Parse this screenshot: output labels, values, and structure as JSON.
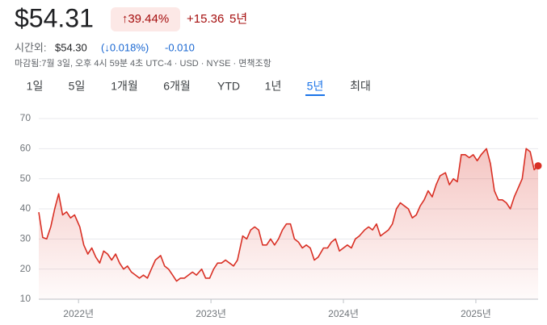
{
  "header": {
    "price": "$54.31",
    "change_pct": "↑39.44%",
    "change_abs": "+15.36",
    "period": "5년"
  },
  "after_hours": {
    "label": "시간외:",
    "price": "$54.30",
    "change_pct": "(↓0.018%)",
    "change_abs": "-0.010"
  },
  "info": "마감됨:7월 3일, 오후 4시 59분 4초 UTC-4 · USD · NYSE · 면책조항",
  "tabs": {
    "items": [
      "1일",
      "5일",
      "1개월",
      "6개월",
      "YTD",
      "1년",
      "5년",
      "최대"
    ],
    "selected": 6
  },
  "chart_data": {
    "type": "line",
    "x": [
      2021.7,
      2021.73,
      2021.76,
      2021.79,
      2021.82,
      2021.85,
      2021.88,
      2021.91,
      2021.94,
      2021.97,
      2022.01,
      2022.04,
      2022.07,
      2022.1,
      2022.13,
      2022.16,
      2022.19,
      2022.22,
      2022.25,
      2022.28,
      2022.31,
      2022.34,
      2022.37,
      2022.4,
      2022.43,
      2022.46,
      2022.49,
      2022.52,
      2022.55,
      2022.58,
      2022.62,
      2022.65,
      2022.68,
      2022.71,
      2022.74,
      2022.77,
      2022.8,
      2022.83,
      2022.86,
      2022.89,
      2022.93,
      2022.96,
      2022.99,
      2023.02,
      2023.05,
      2023.08,
      2023.11,
      2023.14,
      2023.17,
      2023.2,
      2023.24,
      2023.27,
      2023.3,
      2023.33,
      2023.36,
      2023.39,
      2023.42,
      2023.45,
      2023.48,
      2023.51,
      2023.54,
      2023.57,
      2023.6,
      2023.63,
      2023.66,
      2023.69,
      2023.72,
      2023.75,
      2023.78,
      2023.81,
      2023.85,
      2023.88,
      2023.91,
      2023.94,
      2023.97,
      2024.0,
      2024.03,
      2024.06,
      2024.09,
      2024.12,
      2024.16,
      2024.19,
      2024.22,
      2024.25,
      2024.28,
      2024.31,
      2024.34,
      2024.37,
      2024.4,
      2024.43,
      2024.46,
      2024.49,
      2024.52,
      2024.55,
      2024.58,
      2024.61,
      2024.64,
      2024.67,
      2024.7,
      2024.73,
      2024.77,
      2024.8,
      2024.83,
      2024.86,
      2024.89,
      2024.92,
      2024.95,
      2024.98,
      2025.01,
      2025.04,
      2025.08,
      2025.11,
      2025.14,
      2025.17,
      2025.2,
      2025.23,
      2025.26,
      2025.29,
      2025.32,
      2025.35,
      2025.38,
      2025.41,
      2025.44,
      2025.47
    ],
    "series": [
      {
        "color": "#d93025",
        "values": [
          38.9,
          30.5,
          30,
          34,
          40,
          45,
          38,
          39,
          37,
          38,
          34,
          28,
          25,
          27,
          24,
          22,
          26,
          25,
          23,
          25,
          22,
          20,
          21,
          19,
          18,
          17,
          18,
          17,
          20,
          23,
          24.5,
          21,
          20,
          18,
          16,
          17,
          17,
          18,
          19,
          18,
          20,
          17,
          17,
          20,
          22,
          22,
          23,
          22,
          21,
          23,
          31,
          30,
          33,
          34,
          33,
          28,
          28,
          30,
          28,
          30,
          33,
          35,
          35,
          30,
          29,
          27,
          28,
          27,
          23,
          24,
          27,
          27,
          29,
          30,
          26,
          27,
          28,
          27,
          30,
          31,
          33,
          34,
          33,
          35,
          31,
          32,
          33,
          35,
          40,
          42,
          41,
          40,
          37,
          38,
          41,
          43,
          46,
          44,
          48,
          51,
          52,
          48,
          50,
          49,
          58,
          58,
          57,
          58,
          56,
          58,
          60,
          55,
          46,
          43,
          43,
          42,
          40,
          44,
          47,
          50,
          60,
          59,
          53,
          54.31
        ]
      }
    ],
    "xlim": [
      2021.7,
      2025.47
    ],
    "xticks": [
      {
        "value": 2022,
        "label": "2022년"
      },
      {
        "value": 2023,
        "label": "2023년"
      },
      {
        "value": 2024,
        "label": "2024년"
      },
      {
        "value": 2025,
        "label": "2025년"
      }
    ],
    "ylim": [
      10,
      70
    ],
    "yticks": [
      10,
      20,
      30,
      40,
      50,
      60,
      70
    ],
    "grid": true
  }
}
